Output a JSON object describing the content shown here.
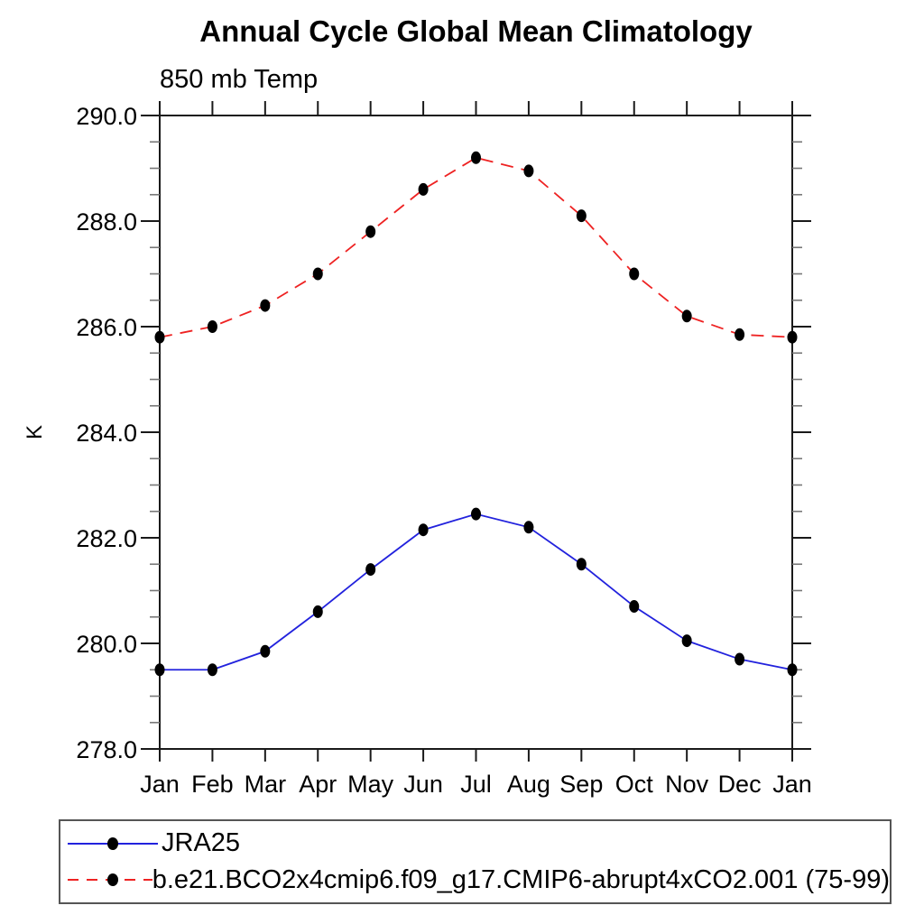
{
  "title": "Annual Cycle Global Mean Climatology",
  "subtitle": "850 mb Temp",
  "chart_data": {
    "type": "line",
    "title": "Annual Cycle Global Mean Climatology",
    "subtitle": "850 mb Temp",
    "xlabel": "",
    "ylabel": "K",
    "categories": [
      "Jan",
      "Feb",
      "Mar",
      "Apr",
      "May",
      "Jun",
      "Jul",
      "Aug",
      "Sep",
      "Oct",
      "Nov",
      "Dec",
      "Jan"
    ],
    "ylim": [
      278.0,
      290.0
    ],
    "y_major_ticks": [
      278.0,
      280.0,
      282.0,
      284.0,
      286.0,
      288.0,
      290.0
    ],
    "y_tick_labels": [
      "278.0",
      "280.0",
      "282.0",
      "284.0",
      "286.0",
      "288.0",
      "290.0"
    ],
    "y_minor_tick_interval": 0.5,
    "grid": "off",
    "tick_direction": "out",
    "legend_position": "bottom-left-box",
    "series": [
      {
        "name": "JRA25",
        "color": "#2222dd",
        "line_style": "solid",
        "marker": "black-filled-circle",
        "values": [
          279.5,
          279.5,
          279.85,
          280.6,
          281.4,
          282.15,
          282.45,
          282.2,
          281.5,
          280.7,
          280.05,
          279.7,
          279.5
        ]
      },
      {
        "name": "b.e21.BCO2x4cmip6.f09_g17.CMIP6-abrupt4xCO2.001 (75-99)",
        "color": "#ee2222",
        "line_style": "dashed",
        "marker": "black-filled-circle",
        "values": [
          285.8,
          286.0,
          286.4,
          287.0,
          287.8,
          288.6,
          289.2,
          288.95,
          288.1,
          287.0,
          286.2,
          285.85,
          285.8
        ]
      }
    ],
    "marker_color": "#000000",
    "frame_color": "#1a1a1a"
  }
}
